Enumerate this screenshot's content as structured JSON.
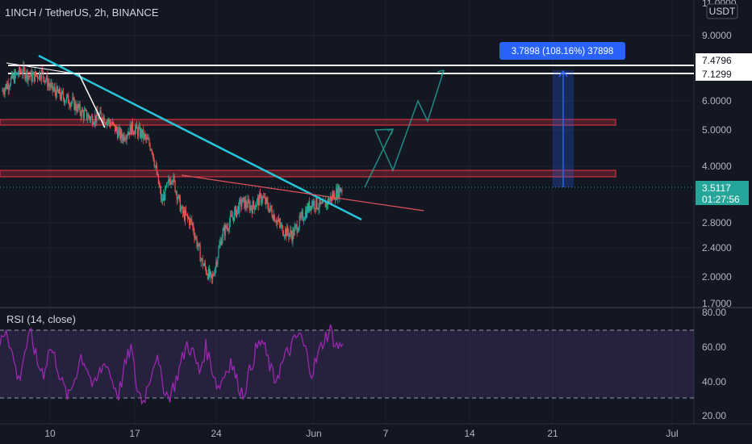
{
  "header": {
    "symbol_title": "1INCH / TetherUS, 2h, BINANCE",
    "currency_badge": "USDT"
  },
  "price_axis": {
    "labels": [
      "11.0000",
      "9.0000",
      "6.0000",
      "5.0000",
      "4.0000",
      "2.8000",
      "2.4000",
      "2.0000",
      "1.7000"
    ],
    "level_tags": [
      "7.4796",
      "7.1299"
    ],
    "current_price": "3.5117",
    "countdown": "01:27:56"
  },
  "measure_label": "3.7898 (108.16%) 37898",
  "rsi": {
    "title": "RSI (14, close)",
    "axis_labels": [
      "80.00",
      "60.00",
      "40.00",
      "20.00"
    ],
    "upper_band": 70,
    "lower_band": 30
  },
  "time_axis": {
    "labels": [
      "10",
      "17",
      "24",
      "Jun",
      "7",
      "14",
      "21",
      "Jul"
    ]
  },
  "chart_data": {
    "type": "candlestick",
    "title": "1INCH / TetherUS, 2h, BINANCE",
    "y_scale": "log",
    "ylim": [
      1.7,
      11.0
    ],
    "current_price": 3.5117,
    "horizontal_levels": [
      7.4796,
      7.1299
    ],
    "resistance_zones": [
      [
        5.1,
        5.3
      ],
      [
        3.75,
        3.9
      ]
    ],
    "measured_move": {
      "change": 3.7898,
      "percent": 108.16
    },
    "series": [
      {
        "name": "close",
        "values": [
          6.4,
          6.9,
          7.3,
          7.0,
          7.2,
          6.5,
          6.2,
          6.0,
          5.6,
          5.4,
          5.5,
          5.2,
          4.8,
          5.1,
          4.9,
          4.5,
          3.2,
          3.8,
          3.0,
          2.8,
          2.2,
          1.95,
          2.6,
          2.9,
          3.2,
          3.1,
          3.3,
          3.0,
          2.7,
          2.6,
          2.9,
          3.2,
          3.1,
          3.3,
          3.5
        ]
      },
      {
        "name": "projected path",
        "values": [
          3.5,
          4.5,
          3.8,
          6.0,
          5.5,
          7.1
        ]
      }
    ],
    "rsi_values": [
      62,
      72,
      55,
      40,
      58,
      68,
      50,
      45,
      60,
      52,
      38,
      30,
      42,
      55,
      48,
      35,
      45,
      52,
      40,
      32,
      48,
      60,
      35,
      28,
      42,
      55,
      40,
      30,
      38,
      50,
      62,
      56,
      45,
      60,
      48,
      36,
      44,
      52,
      40,
      32,
      45,
      58,
      64,
      52,
      40,
      48,
      56,
      62,
      68,
      58,
      45,
      55,
      65,
      70,
      60,
      62
    ],
    "x_ticks": [
      "10",
      "17",
      "24",
      "Jun",
      "7",
      "14",
      "21",
      "Jul"
    ]
  }
}
